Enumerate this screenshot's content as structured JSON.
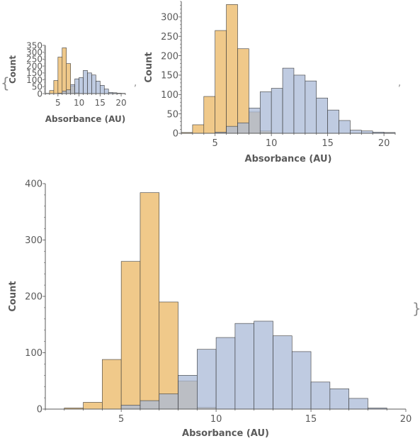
{
  "punctuation": {
    "open_brace": "{",
    "close_brace": "}",
    "comma": ","
  },
  "colors": {
    "orange": "#f0c98a",
    "blue": "#a9bad7",
    "overlap": "#c1a077",
    "edge": "#3a3a3a",
    "axis": "#5a5a5a"
  },
  "chart_data": [
    {
      "type": "histogram",
      "xlabel": "Absorbance  (AU)",
      "ylabel": "Count",
      "xlim": [
        2,
        21
      ],
      "ylim": [
        0,
        350
      ],
      "xticks": [
        5,
        10,
        15,
        20
      ],
      "yticks": [
        0,
        50,
        100,
        150,
        200,
        250,
        300,
        350
      ],
      "bin_width": 1,
      "series": [
        {
          "color": "orange",
          "bins": [
            [
              2,
              3,
              2
            ],
            [
              3,
              4,
              22
            ],
            [
              4,
              5,
              95
            ],
            [
              5,
              6,
              265
            ],
            [
              6,
              7,
              332
            ],
            [
              7,
              8,
              218
            ],
            [
              8,
              9,
              55
            ],
            [
              9,
              10,
              6
            ]
          ]
        },
        {
          "color": "blue",
          "bins": [
            [
              5,
              6,
              3
            ],
            [
              6,
              7,
              18
            ],
            [
              7,
              8,
              27
            ],
            [
              8,
              9,
              65
            ],
            [
              9,
              10,
              107
            ],
            [
              10,
              11,
              116
            ],
            [
              11,
              12,
              168
            ],
            [
              12,
              13,
              150
            ],
            [
              13,
              14,
              135
            ],
            [
              14,
              15,
              91
            ],
            [
              15,
              16,
              60
            ],
            [
              16,
              17,
              33
            ],
            [
              17,
              18,
              8
            ],
            [
              18,
              19,
              6
            ],
            [
              19,
              20,
              3
            ],
            [
              20,
              21,
              2
            ]
          ]
        }
      ]
    },
    {
      "type": "histogram",
      "xlabel": "Absorbance  (AU)",
      "ylabel": "Count",
      "xlim": [
        2,
        21
      ],
      "ylim": [
        0,
        340
      ],
      "xticks": [
        5,
        10,
        15,
        20
      ],
      "yticks": [
        0,
        50,
        100,
        150,
        200,
        250,
        300
      ],
      "bin_width": 1,
      "series": [
        {
          "color": "orange",
          "bins": [
            [
              2,
              3,
              2
            ],
            [
              3,
              4,
              22
            ],
            [
              4,
              5,
              95
            ],
            [
              5,
              6,
              265
            ],
            [
              6,
              7,
              332
            ],
            [
              7,
              8,
              218
            ],
            [
              8,
              9,
              55
            ],
            [
              9,
              10,
              6
            ]
          ]
        },
        {
          "color": "blue",
          "bins": [
            [
              5,
              6,
              3
            ],
            [
              6,
              7,
              18
            ],
            [
              7,
              8,
              27
            ],
            [
              8,
              9,
              65
            ],
            [
              9,
              10,
              107
            ],
            [
              10,
              11,
              116
            ],
            [
              11,
              12,
              168
            ],
            [
              12,
              13,
              150
            ],
            [
              13,
              14,
              135
            ],
            [
              14,
              15,
              91
            ],
            [
              15,
              16,
              60
            ],
            [
              16,
              17,
              33
            ],
            [
              17,
              18,
              8
            ],
            [
              18,
              19,
              6
            ],
            [
              19,
              20,
              3
            ],
            [
              20,
              21,
              2
            ]
          ]
        }
      ]
    },
    {
      "type": "histogram",
      "xlabel": "Absorbance  (AU)",
      "ylabel": "Count",
      "xlim": [
        1,
        20
      ],
      "ylim": [
        0,
        400
      ],
      "xticks": [
        5,
        10,
        15,
        20
      ],
      "yticks": [
        0,
        100,
        200,
        300,
        400
      ],
      "bin_width": 1,
      "series": [
        {
          "color": "orange",
          "bins": [
            [
              1,
              2,
              0
            ],
            [
              2,
              3,
              2
            ],
            [
              3,
              4,
              12
            ],
            [
              4,
              5,
              88
            ],
            [
              5,
              6,
              262
            ],
            [
              6,
              7,
              384
            ],
            [
              7,
              8,
              190
            ],
            [
              8,
              9,
              50
            ],
            [
              9,
              10,
              3
            ]
          ]
        },
        {
          "color": "blue",
          "bins": [
            [
              5,
              6,
              7
            ],
            [
              6,
              7,
              15
            ],
            [
              7,
              8,
              27
            ],
            [
              8,
              9,
              60
            ],
            [
              9,
              10,
              106
            ],
            [
              10,
              11,
              127
            ],
            [
              11,
              12,
              152
            ],
            [
              12,
              13,
              156
            ],
            [
              13,
              14,
              130
            ],
            [
              14,
              15,
              102
            ],
            [
              15,
              16,
              48
            ],
            [
              16,
              17,
              36
            ],
            [
              17,
              18,
              19
            ],
            [
              18,
              19,
              2
            ],
            [
              19,
              20,
              0
            ]
          ]
        }
      ]
    }
  ]
}
